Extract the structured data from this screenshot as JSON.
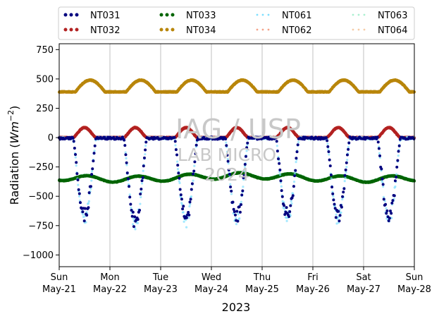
{
  "chart_data": {
    "type": "scatter",
    "title": "",
    "xlabel": "2023",
    "ylabel_main": "Radiation (",
    "ylabel_unit": "Wm",
    "ylabel_exp": "−2",
    "ylabel_close": ")",
    "ylim": [
      -1100,
      800
    ],
    "yticks": [
      750,
      500,
      250,
      0,
      -250,
      -500,
      -750,
      -1000
    ],
    "ytick_labels": [
      "750",
      "500",
      "250",
      "0",
      "−250",
      "−500",
      "−750",
      "−1000"
    ],
    "xlim_days": [
      0,
      7
    ],
    "xticks": [
      {
        "day": "Sun",
        "date": "May-21"
      },
      {
        "day": "Mon",
        "date": "May-22"
      },
      {
        "day": "Tue",
        "date": "May-23"
      },
      {
        "day": "Wed",
        "date": "May-24"
      },
      {
        "day": "Thu",
        "date": "May-25"
      },
      {
        "day": "Fri",
        "date": "May-26"
      },
      {
        "day": "Sat",
        "date": "May-27"
      },
      {
        "day": "Sun",
        "date": "May-28"
      }
    ],
    "grid": "vertical",
    "legend_position": "top",
    "series": [
      {
        "name": "NT031",
        "color": "#00007f",
        "style": "dots",
        "pattern": "shortwave_in",
        "night": -5,
        "peak": -720
      },
      {
        "name": "NT032",
        "color": "#b22222",
        "style": "dots",
        "pattern": "shortwave_out",
        "night": 0,
        "peak": 85
      },
      {
        "name": "NT033",
        "color": "#006400",
        "style": "dots",
        "pattern": "longwave_in",
        "base": -340
      },
      {
        "name": "NT034",
        "color": "#b8860b",
        "style": "dots",
        "pattern": "longwave_out",
        "base": 390,
        "peak": 490
      },
      {
        "name": "NT061",
        "color": "#7fdfff",
        "style": "faint",
        "pattern": "shortwave_in",
        "night": -5,
        "peak": -740
      },
      {
        "name": "NT062",
        "color": "#f4a38a",
        "style": "faint",
        "pattern": "shortwave_out",
        "night": 0,
        "peak": 90
      },
      {
        "name": "NT063",
        "color": "#aaf0d1",
        "style": "faint",
        "pattern": "longwave_in",
        "base": -335
      },
      {
        "name": "NT064",
        "color": "#f5cba7",
        "style": "faint",
        "pattern": "longwave_out",
        "base": 385,
        "peak": 485
      }
    ],
    "daily_peaks": [
      -720,
      -780,
      -740,
      -730,
      -720,
      -720,
      -730
    ]
  },
  "watermark": {
    "line1": "IAG / USP",
    "line2": "LAB MICRO",
    "line3": "2024"
  }
}
